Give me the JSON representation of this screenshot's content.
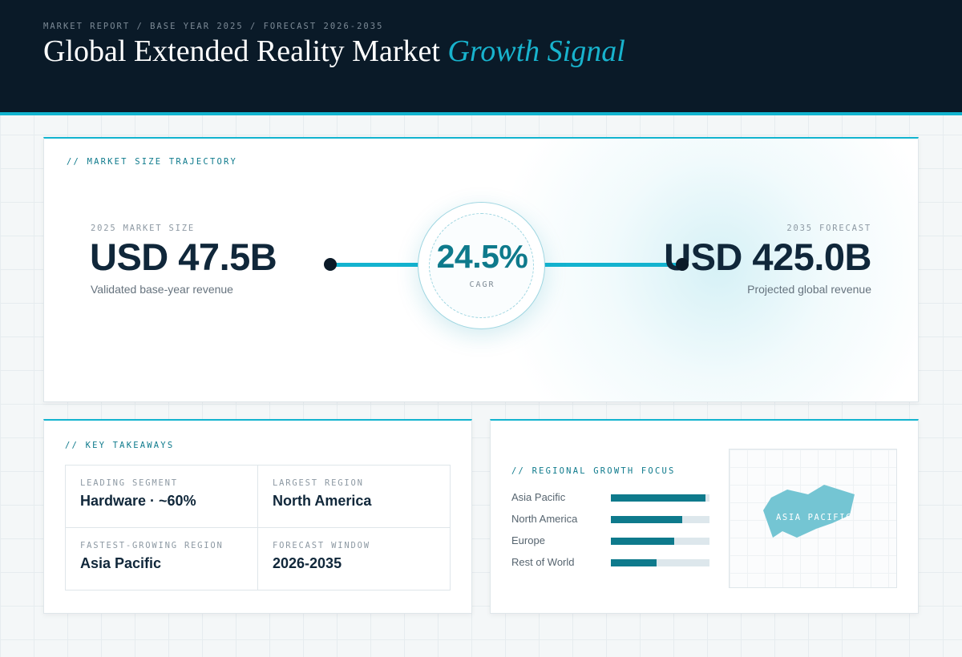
{
  "header": {
    "kicker": "MARKET REPORT / BASE YEAR 2025 / FORECAST 2026-2035",
    "title_main": "Global Extended Reality Market",
    "title_accent": "Growth Signal"
  },
  "trajectory": {
    "label": "// MARKET SIZE TRAJECTORY",
    "base": {
      "caption": "2025 MARKET SIZE",
      "value": "USD 47.5B",
      "note": "Validated base-year revenue"
    },
    "forecast": {
      "caption": "2035 FORECAST",
      "value": "USD 425.0B",
      "note": "Projected global revenue"
    },
    "cagr": {
      "value": "24.5%",
      "caption": "CAGR"
    }
  },
  "takeaways": {
    "label": "// KEY TAKEAWAYS",
    "items": [
      {
        "caption": "LEADING SEGMENT",
        "value": "Hardware · ~60%"
      },
      {
        "caption": "LARGEST REGION",
        "value": "North America"
      },
      {
        "caption": "FASTEST-GROWING REGION",
        "value": "Asia Pacific"
      },
      {
        "caption": "FORECAST WINDOW",
        "value": "2026-2035"
      }
    ]
  },
  "regional": {
    "label": "// REGIONAL GROWTH FOCUS",
    "bars": [
      {
        "name": "Asia Pacific",
        "level": 0.96
      },
      {
        "name": "North America",
        "level": 0.72
      },
      {
        "name": "Europe",
        "level": 0.64
      },
      {
        "name": "Rest of World",
        "level": 0.46
      }
    ],
    "map_label": "ASIA PACIFIC",
    "map_color": "#74c5d3"
  },
  "colors": {
    "accent": "#12b4cf",
    "accent_dark": "#0e7a8c",
    "header_bg": "#0a1a28",
    "text_dark": "#10273a"
  }
}
